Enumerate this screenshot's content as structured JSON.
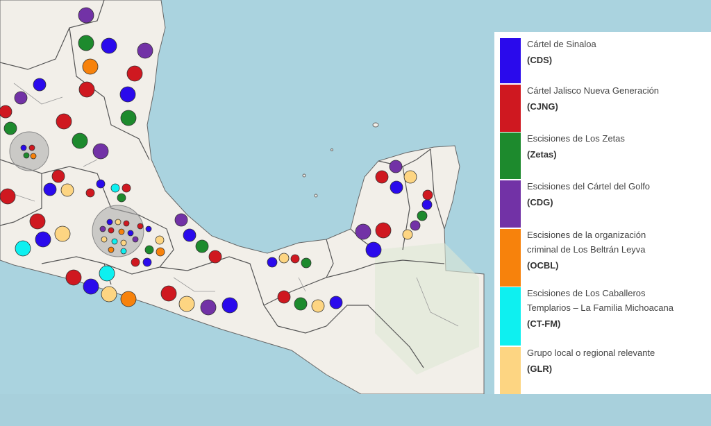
{
  "legend": {
    "items": [
      {
        "name": [
          "Cártel de Sinaloa"
        ],
        "abbr": "(CDS)",
        "color": "#2a0aec"
      },
      {
        "name": [
          "Cártel Jalisco Nueva Generación"
        ],
        "abbr": "(CJNG)",
        "color": "#cf1820"
      },
      {
        "name": [
          "Escisiones de Los Zetas"
        ],
        "abbr": "(Zetas)",
        "color": "#1d8a2d"
      },
      {
        "name": [
          "Escisiones del Cártel del Golfo"
        ],
        "abbr": "(CDG)",
        "color": "#7232a6"
      },
      {
        "name": [
          "Escisiones de la organización",
          "criminal de Los Beltrán Leyva"
        ],
        "abbr": "(OCBL)",
        "color": "#f7820c"
      },
      {
        "name": [
          "Escisiones de Los Caballeros",
          "Templarios – La Familia Michoacana"
        ],
        "abbr": "(CT-FM)",
        "color": "#0ef0f0"
      },
      {
        "name": [
          "Grupo local o regional relevante"
        ],
        "abbr": "(GLR)",
        "color": "#fdd582"
      }
    ]
  }
}
